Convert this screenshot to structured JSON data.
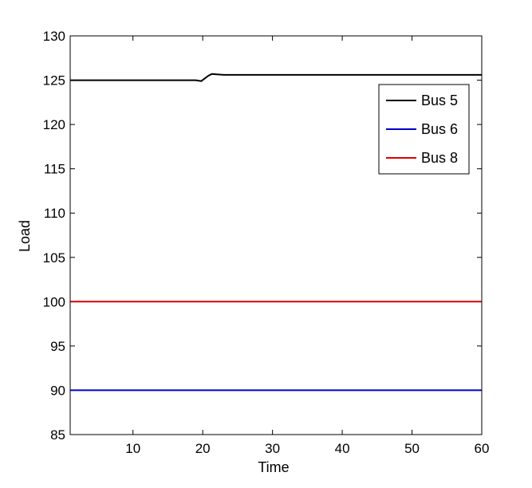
{
  "chart_data": {
    "type": "line",
    "title": "",
    "xlabel": "Time",
    "ylabel": "Load",
    "xlim": [
      1,
      60
    ],
    "ylim": [
      85,
      130
    ],
    "xticks": [
      10,
      20,
      30,
      40,
      50,
      60
    ],
    "yticks": [
      85,
      90,
      95,
      100,
      105,
      110,
      115,
      120,
      125,
      130
    ],
    "grid": false,
    "legend_position": "top-right",
    "series": [
      {
        "name": "Bus 5",
        "color": "#000000",
        "x": [
          1,
          5,
          10,
          15,
          19,
          19.8,
          20.3,
          20.8,
          21.3,
          22,
          23,
          25,
          30,
          40,
          50,
          60
        ],
        "y": [
          125,
          125,
          125,
          125,
          125,
          124.9,
          125.2,
          125.5,
          125.7,
          125.65,
          125.6,
          125.6,
          125.6,
          125.6,
          125.6,
          125.6
        ]
      },
      {
        "name": "Bus 6",
        "color": "#0000cc",
        "x": [
          1,
          60
        ],
        "y": [
          90,
          90
        ]
      },
      {
        "name": "Bus 8",
        "color": "#dd0000",
        "x": [
          1,
          60
        ],
        "y": [
          100,
          100
        ]
      }
    ]
  }
}
